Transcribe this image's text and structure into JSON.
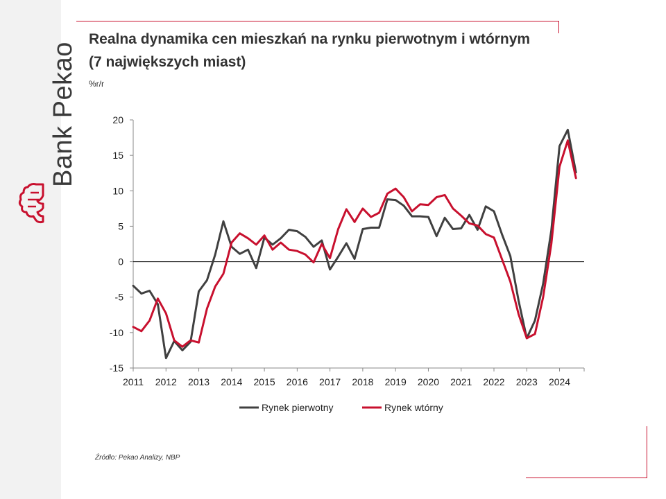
{
  "brand": {
    "name": "Bank Pekao"
  },
  "header": {
    "title": "Realna dynamika cen mieszkań na rynku pierwotnym i wtórnym (7 największych miast)",
    "unit": "%r/r"
  },
  "footer": {
    "source": "Źródło: Pekao Analizy, NBP"
  },
  "colors": {
    "primary_series": "#404040",
    "secondary_series": "#c8102e",
    "accent": "#c8102e"
  },
  "chart_data": {
    "type": "line",
    "title": "Realna dynamika cen mieszkań na rynku pierwotnym i wtórnym (7 największych miast)",
    "ylabel": "%r/r",
    "xlabel": "",
    "ylim": [
      -15,
      20
    ],
    "yticks": [
      20,
      15,
      10,
      5,
      0,
      -5,
      -10,
      -15
    ],
    "xlim": [
      2011.0,
      2024.75
    ],
    "xticks": [
      "2011",
      "2012",
      "2013",
      "2014",
      "2015",
      "2016",
      "2017",
      "2018",
      "2019",
      "2020",
      "2021",
      "2022",
      "2023",
      "2024"
    ],
    "x_start": 2011.0,
    "x_step": 0.25,
    "legend_position": "bottom",
    "series": [
      {
        "name": "Rynek pierwotny",
        "color": "#404040",
        "values": [
          -3.4,
          -4.5,
          -4.1,
          -6.0,
          -13.6,
          -11.2,
          -12.5,
          -11.3,
          -4.2,
          -2.6,
          1.0,
          5.7,
          2.1,
          1.1,
          1.7,
          -0.9,
          3.4,
          2.4,
          3.3,
          4.5,
          4.3,
          3.5,
          2.1,
          3.0,
          -1.1,
          0.7,
          2.6,
          0.4,
          4.6,
          4.8,
          4.8,
          8.8,
          8.7,
          7.9,
          6.4,
          6.4,
          6.3,
          3.6,
          6.2,
          4.6,
          4.7,
          6.6,
          4.5,
          7.8,
          7.1,
          3.8,
          0.8,
          -5.5,
          -10.8,
          -8.3,
          -3.1,
          4.4,
          16.3,
          18.6,
          12.6
        ]
      },
      {
        "name": "Rynek wtórny",
        "color": "#c8102e",
        "values": [
          -9.2,
          -9.8,
          -8.3,
          -5.2,
          -7.3,
          -11.1,
          -12.0,
          -11.1,
          -11.4,
          -6.6,
          -3.5,
          -1.7,
          2.7,
          4.0,
          3.3,
          2.4,
          3.7,
          1.7,
          2.7,
          1.7,
          1.5,
          1.0,
          -0.1,
          2.5,
          0.5,
          4.6,
          7.4,
          5.6,
          7.5,
          6.3,
          6.9,
          9.6,
          10.3,
          9.1,
          7.1,
          8.1,
          8.0,
          9.1,
          9.4,
          7.5,
          6.5,
          5.4,
          5.1,
          3.9,
          3.4,
          0.3,
          -2.8,
          -7.4,
          -10.8,
          -10.2,
          -5.0,
          2.5,
          13.4,
          17.1,
          11.8
        ]
      }
    ]
  }
}
